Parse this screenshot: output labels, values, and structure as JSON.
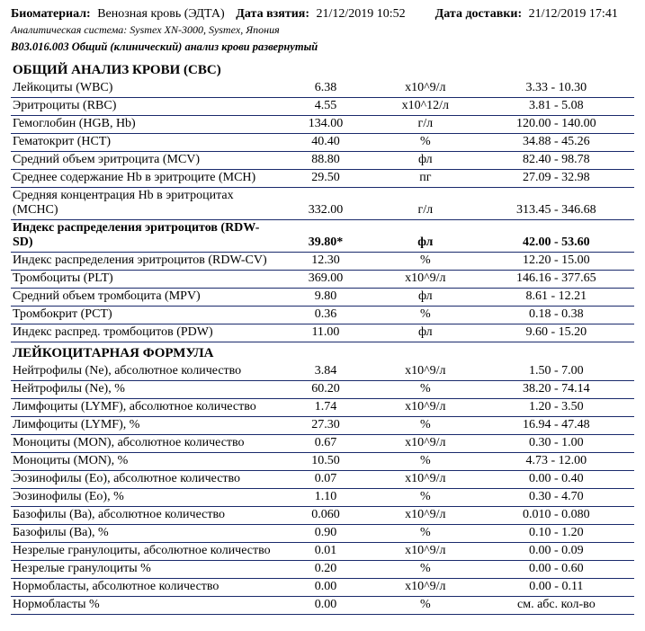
{
  "header": {
    "biomaterial_label": "Биоматериал:",
    "biomaterial_value": "Венозная кровь (ЭДТА)",
    "collection_label": "Дата взятия:",
    "collection_value": "21/12/2019 10:52",
    "delivery_label": "Дата доставки:",
    "delivery_value": "21/12/2019 17:41",
    "analyzer": "Аналитическая система: Sysmex XN-3000, Sysmex, Япония",
    "test_code": "B03.016.003 Общий (клинический) анализ крови развернутый"
  },
  "section_cbc_title": "ОБЩИЙ АНАЛИЗ КРОВИ (CBC)",
  "section_diff_title": "ЛЕЙКОЦИТАРНАЯ ФОРМУЛА",
  "cbc_rows": [
    {
      "name": "Лейкоциты (WBC)",
      "value": "6.38",
      "unit": "х10^9/л",
      "range": "3.33 - 10.30",
      "bold": false
    },
    {
      "name": "Эритроциты (RBC)",
      "value": "4.55",
      "unit": "х10^12/л",
      "range": "3.81 - 5.08",
      "bold": false
    },
    {
      "name": "Гемоглобин (HGB, Hb)",
      "value": "134.00",
      "unit": "г/л",
      "range": "120.00 - 140.00",
      "bold": false
    },
    {
      "name": "Гематокрит (HCT)",
      "value": "40.40",
      "unit": "%",
      "range": "34.88 - 45.26",
      "bold": false
    },
    {
      "name": "Средний объем эритроцита (MCV)",
      "value": "88.80",
      "unit": "фл",
      "range": "82.40 - 98.78",
      "bold": false
    },
    {
      "name": "Среднее содержание Hb в эритроците (MCH)",
      "value": "29.50",
      "unit": "пг",
      "range": "27.09 - 32.98",
      "bold": false
    },
    {
      "name": "Средняя концентрация Hb в эритроцитах (MCHC)",
      "value": "332.00",
      "unit": "г/л",
      "range": "313.45 - 346.68",
      "bold": false
    },
    {
      "name": "Индекс распределения эритроцитов (RDW-SD)",
      "value": "39.80*",
      "unit": "фл",
      "range": "42.00 - 53.60",
      "bold": true
    },
    {
      "name": "Индекс распределения эритроцитов (RDW-CV)",
      "value": "12.30",
      "unit": "%",
      "range": "12.20 - 15.00",
      "bold": false
    },
    {
      "name": "Тромбоциты (PLT)",
      "value": "369.00",
      "unit": "х10^9/л",
      "range": "146.16 - 377.65",
      "bold": false
    },
    {
      "name": "Средний объем тромбоцита (MPV)",
      "value": "9.80",
      "unit": "фл",
      "range": "8.61 - 12.21",
      "bold": false
    },
    {
      "name": "Тромбокрит (PCT)",
      "value": "0.36",
      "unit": "%",
      "range": "0.18 - 0.38",
      "bold": false
    },
    {
      "name": "Индекс распред. тромбоцитов (PDW)",
      "value": "11.00",
      "unit": "фл",
      "range": "9.60 - 15.20",
      "bold": false
    }
  ],
  "diff_rows": [
    {
      "name": "Нейтрофилы (Ne), абсолютное количество",
      "value": "3.84",
      "unit": "х10^9/л",
      "range": "1.50 - 7.00",
      "bold": false
    },
    {
      "name": "Нейтрофилы (Ne), %",
      "value": "60.20",
      "unit": "%",
      "range": "38.20 - 74.14",
      "bold": false
    },
    {
      "name": "Лимфоциты (LYMF), абсолютное количество",
      "value": "1.74",
      "unit": "х10^9/л",
      "range": "1.20 - 3.50",
      "bold": false
    },
    {
      "name": "Лимфоциты (LYMF), %",
      "value": "27.30",
      "unit": "%",
      "range": "16.94 - 47.48",
      "bold": false
    },
    {
      "name": "Моноциты (MON), абсолютное количество",
      "value": "0.67",
      "unit": "х10^9/л",
      "range": "0.30 - 1.00",
      "bold": false
    },
    {
      "name": "Моноциты (MON), %",
      "value": "10.50",
      "unit": "%",
      "range": "4.73 - 12.00",
      "bold": false
    },
    {
      "name": "Эозинофилы (Eo), абсолютное количество",
      "value": "0.07",
      "unit": "х10^9/л",
      "range": "0.00 - 0.40",
      "bold": false
    },
    {
      "name": "Эозинофилы (Eo), %",
      "value": "1.10",
      "unit": "%",
      "range": "0.30 - 4.70",
      "bold": false
    },
    {
      "name": "Базофилы (Ba), абсолютное количество",
      "value": "0.060",
      "unit": "х10^9/л",
      "range": "0.010 - 0.080",
      "bold": false
    },
    {
      "name": "Базофилы (Ba), %",
      "value": "0.90",
      "unit": "%",
      "range": "0.10 - 1.20",
      "bold": false
    },
    {
      "name": "Незрелые гранулоциты, абсолютное количество",
      "value": "0.01",
      "unit": "х10^9/л",
      "range": "0.00 - 0.09",
      "bold": false
    },
    {
      "name": "Незрелые гранулоциты %",
      "value": "0.20",
      "unit": "%",
      "range": "0.00 - 0.60",
      "bold": false
    },
    {
      "name": "Нормобласты, абсолютное количество",
      "value": "0.00",
      "unit": "х10^9/л",
      "range": "0.00 - 0.11",
      "bold": false
    },
    {
      "name": "Нормобласты %",
      "value": "0.00",
      "unit": "%",
      "range": "см. абс. кол-во",
      "bold": false
    }
  ]
}
